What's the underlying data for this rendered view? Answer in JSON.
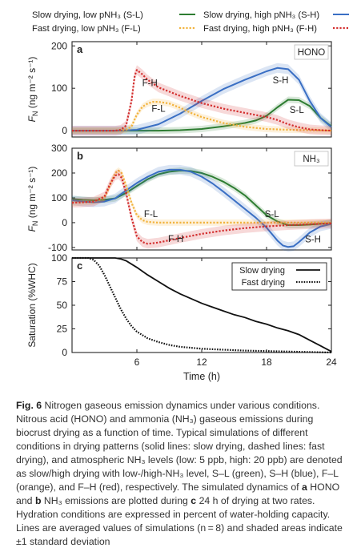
{
  "caption": {
    "label": "Fig. 6",
    "text": "Nitrogen gaseous emission dynamics under various conditions. Nitrous acid (HONO) and ammonia (NH₃) gaseous emissions during biocrust drying as a function of time. Typical simulations of different conditions in drying patterns (solid lines: slow drying, dashed lines: fast drying), and atmospheric NH₃ levels (low: 5 ppb, high: 20 ppb) are denoted as slow/high drying with low-/high-NH₃ level, S–L (green), S–H (blue), F–L (orange), and F–H (red), respectively. The simulated dynamics of",
    "bold_a": "a",
    "text_a": "HONO and",
    "bold_b": "b",
    "text_b": "NH₃ emissions are plotted during",
    "bold_c": "c",
    "text_c": "24 h of drying at two rates. Hydration conditions are expressed in percent of water-holding capacity. Lines are averaged values of simulations (n = 8) and shaded areas indicate ±1 standard deviation"
  },
  "colors": {
    "S-L": "#2e7d32",
    "S-H": "#3a6fc4",
    "F-L": "#f2b33d",
    "F-H": "#d32f2f"
  },
  "legend": [
    {
      "key": "S-L",
      "label": "Slow drying, low pNH₃ (S-L)",
      "dash": false
    },
    {
      "key": "S-H",
      "label": "Slow drying, high pNH₃ (S-H)",
      "dash": false
    },
    {
      "key": "F-L",
      "label": "Fast drying, low pNH₃ (F-L)",
      "dash": true
    },
    {
      "key": "F-H",
      "label": "Fast drying, high pNH₃ (F-H)",
      "dash": true
    }
  ],
  "chart_data": [
    {
      "type": "line",
      "panel": "a",
      "tag": "HONO",
      "ylabel": "F_N (ng m⁻² s⁻¹)",
      "ylim": [
        -15,
        210
      ],
      "yticks": [
        0,
        100,
        200
      ],
      "xlim": [
        0,
        24
      ],
      "series": [
        {
          "key": "S-L",
          "x": [
            0,
            4,
            8,
            10,
            12,
            14,
            16,
            17,
            18,
            19,
            20,
            21,
            22,
            23,
            24
          ],
          "y": [
            0,
            0,
            0,
            1,
            4,
            10,
            18,
            24,
            35,
            55,
            73,
            72,
            58,
            30,
            10
          ]
        },
        {
          "key": "S-H",
          "x": [
            0,
            4,
            6,
            8,
            10,
            12,
            14,
            16,
            17,
            18,
            19,
            20,
            21,
            22,
            23,
            24
          ],
          "y": [
            0,
            0,
            2,
            15,
            40,
            70,
            98,
            120,
            130,
            140,
            148,
            145,
            120,
            70,
            30,
            8
          ]
        },
        {
          "key": "F-L",
          "x": [
            0,
            4,
            5,
            5.5,
            6,
            6.5,
            7,
            7.5,
            8,
            9,
            10,
            11,
            12,
            14,
            16,
            18,
            20,
            22,
            24
          ],
          "y": [
            0,
            0,
            2,
            10,
            38,
            56,
            64,
            68,
            68,
            64,
            54,
            42,
            32,
            18,
            9,
            4,
            2,
            1,
            0
          ]
        },
        {
          "key": "F-H",
          "x": [
            0,
            4,
            4.5,
            5,
            5.5,
            5.8,
            6,
            6.5,
            7,
            8,
            9,
            10,
            12,
            14,
            16,
            18,
            19,
            20,
            21,
            22,
            23,
            24
          ],
          "y": [
            0,
            0,
            2,
            12,
            70,
            130,
            143,
            133,
            120,
            102,
            92,
            82,
            65,
            52,
            42,
            32,
            25,
            15,
            8,
            3,
            1,
            0
          ]
        }
      ],
      "annotations": [
        {
          "text": "F-H",
          "x": 7.2,
          "y": 105
        },
        {
          "text": "F-L",
          "x": 8.0,
          "y": 45
        },
        {
          "text": "S-H",
          "x": 19.3,
          "y": 112
        },
        {
          "text": "S-L",
          "x": 20.8,
          "y": 42
        }
      ]
    },
    {
      "type": "line",
      "panel": "b",
      "tag": "NH₃",
      "ylabel": "F_N (ng m⁻² s⁻¹)",
      "ylim": [
        -110,
        300
      ],
      "yticks": [
        -100,
        0,
        100,
        200,
        300
      ],
      "xlim": [
        0,
        24
      ],
      "series": [
        {
          "key": "S-L",
          "x": [
            0,
            1,
            2,
            3,
            4,
            5,
            6,
            7,
            8,
            9,
            10,
            11,
            12,
            13,
            14,
            15,
            16,
            17,
            18,
            19,
            20,
            21,
            22,
            23,
            24
          ],
          "y": [
            95,
            92,
            90,
            92,
            98,
            120,
            148,
            175,
            195,
            205,
            210,
            208,
            200,
            185,
            165,
            140,
            110,
            70,
            30,
            5,
            -10,
            -10,
            -8,
            -4,
            -2
          ]
        },
        {
          "key": "S-H",
          "x": [
            0,
            1,
            2,
            3,
            4,
            5,
            6,
            7,
            8,
            9,
            10,
            11,
            12,
            13,
            14,
            15,
            16,
            17,
            18,
            19,
            19.5,
            20,
            20.5,
            21,
            22,
            23,
            24
          ],
          "y": [
            90,
            85,
            82,
            85,
            98,
            130,
            160,
            185,
            205,
            213,
            213,
            205,
            185,
            158,
            125,
            90,
            55,
            20,
            -20,
            -72,
            -92,
            -98,
            -95,
            -78,
            -40,
            -15,
            -5
          ]
        },
        {
          "key": "F-L",
          "x": [
            0,
            1,
            2,
            3,
            3.5,
            4,
            4.3,
            4.6,
            5,
            5.5,
            6,
            6.5,
            7,
            8,
            10,
            12,
            16,
            20,
            24
          ],
          "y": [
            80,
            82,
            85,
            100,
            150,
            200,
            210,
            200,
            150,
            80,
            30,
            10,
            3,
            0,
            0,
            0,
            0,
            0,
            0
          ]
        },
        {
          "key": "F-H",
          "x": [
            0,
            1,
            2,
            3,
            3.5,
            4,
            4.3,
            4.6,
            5,
            5.5,
            6,
            6.5,
            7,
            8,
            10,
            12,
            14,
            16,
            18,
            20,
            22,
            24
          ],
          "y": [
            80,
            82,
            85,
            105,
            155,
            190,
            195,
            180,
            120,
            20,
            -55,
            -78,
            -85,
            -80,
            -62,
            -45,
            -32,
            -22,
            -15,
            -10,
            -6,
            -3
          ]
        }
      ],
      "annotations": [
        {
          "text": "F-L",
          "x": 7.3,
          "y": 22
        },
        {
          "text": "F-H",
          "x": 9.6,
          "y": -78
        },
        {
          "text": "S-L",
          "x": 18.5,
          "y": 22
        },
        {
          "text": "S-H",
          "x": 22.3,
          "y": -80
        }
      ]
    },
    {
      "type": "line",
      "panel": "c",
      "ylabel": "Saturation (%WHC)",
      "xlabel": "Time (h)",
      "ylim": [
        0,
        100
      ],
      "yticks": [
        0,
        25,
        50,
        75,
        100
      ],
      "xlim": [
        0,
        24
      ],
      "xticks": [
        6,
        12,
        18,
        24
      ],
      "series": [
        {
          "name": "Slow drying",
          "dash": false,
          "x": [
            0,
            3,
            4,
            4.5,
            5,
            6,
            7,
            8,
            9,
            10,
            11,
            12,
            13,
            14,
            15,
            16,
            17,
            18,
            19,
            20,
            21,
            22,
            23,
            24
          ],
          "y": [
            100,
            100,
            100,
            99,
            97,
            90,
            82,
            75,
            68,
            62,
            57,
            52,
            48,
            44,
            40,
            37,
            33,
            30,
            26,
            23,
            19,
            13,
            7,
            1
          ]
        },
        {
          "name": "Fast drying",
          "dash": true,
          "x": [
            0,
            1.5,
            2,
            2.5,
            3,
            3.5,
            4,
            4.5,
            5,
            5.5,
            6,
            7,
            8,
            9,
            10,
            12,
            14,
            16,
            18,
            20,
            24
          ],
          "y": [
            100,
            100,
            98,
            92,
            82,
            70,
            58,
            46,
            36,
            28,
            22,
            15,
            11,
            8,
            6,
            4,
            3,
            2,
            1.5,
            1,
            0
          ]
        }
      ]
    }
  ]
}
